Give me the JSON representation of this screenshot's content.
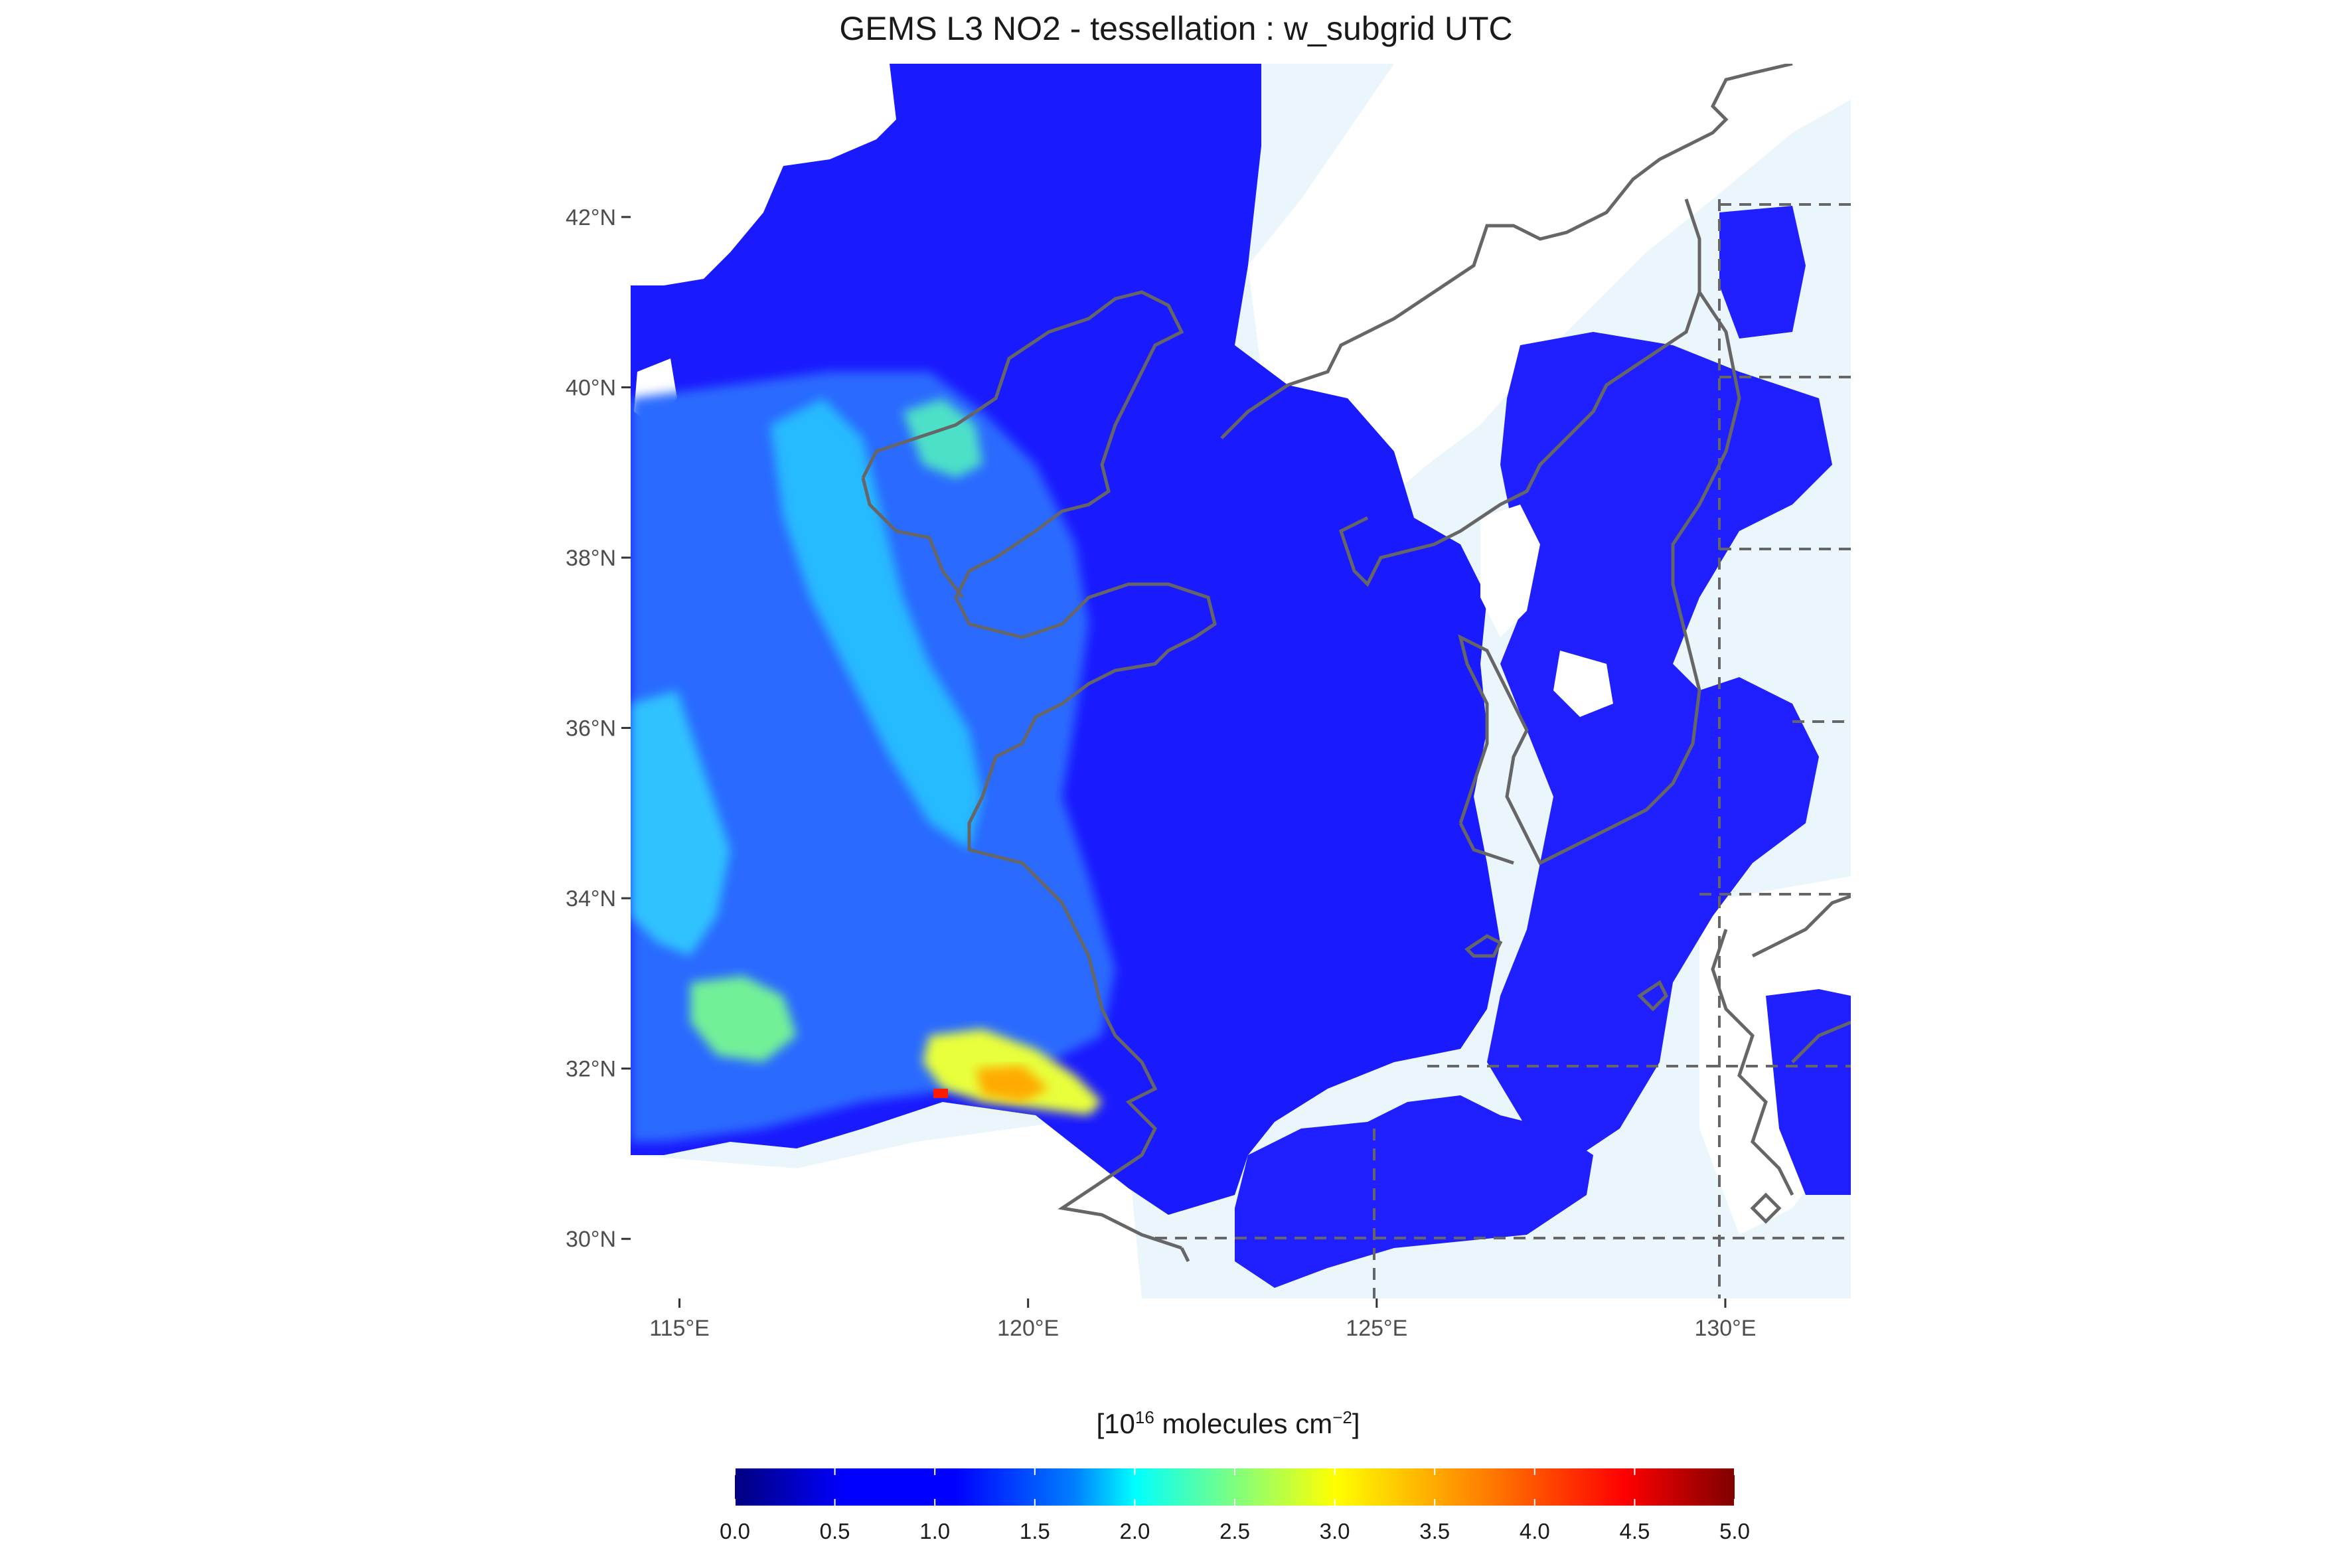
{
  "title": "GEMS L3 NO2 - tessellation : w_subgrid UTC",
  "map": {
    "lon_range": [
      114.3,
      131.8
    ],
    "lat_range": [
      29.3,
      43.8
    ],
    "lat_ticks": [
      {
        "value": 30,
        "label": "30°N"
      },
      {
        "value": 32,
        "label": "32°N"
      },
      {
        "value": 34,
        "label": "34°N"
      },
      {
        "value": 36,
        "label": "36°N"
      },
      {
        "value": 38,
        "label": "38°N"
      },
      {
        "value": 40,
        "label": "40°N"
      },
      {
        "value": 42,
        "label": "42°N"
      }
    ],
    "lon_ticks": [
      {
        "value": 115,
        "label": "115°E"
      },
      {
        "value": 120,
        "label": "120°E"
      },
      {
        "value": 125,
        "label": "125°E"
      },
      {
        "value": 130,
        "label": "130°E"
      }
    ],
    "ocean_color": "#eaf5fc",
    "coast_color": "#666666"
  },
  "legend": {
    "title_base": "[10",
    "title_exp": "16",
    "title_mid": " molecules cm",
    "title_exp2": "−2",
    "title_end": "]",
    "ticks": [
      "0.0",
      "0.5",
      "1.0",
      "1.5",
      "2.0",
      "2.5",
      "3.0",
      "3.5",
      "4.0",
      "4.5",
      "5.0"
    ],
    "range": [
      0,
      5
    ],
    "colors": [
      "#00007f",
      "#0000ff",
      "#007fff",
      "#00ffff",
      "#7fff7f",
      "#ffff00",
      "#ff7f00",
      "#ff0000",
      "#7f0000"
    ]
  }
}
